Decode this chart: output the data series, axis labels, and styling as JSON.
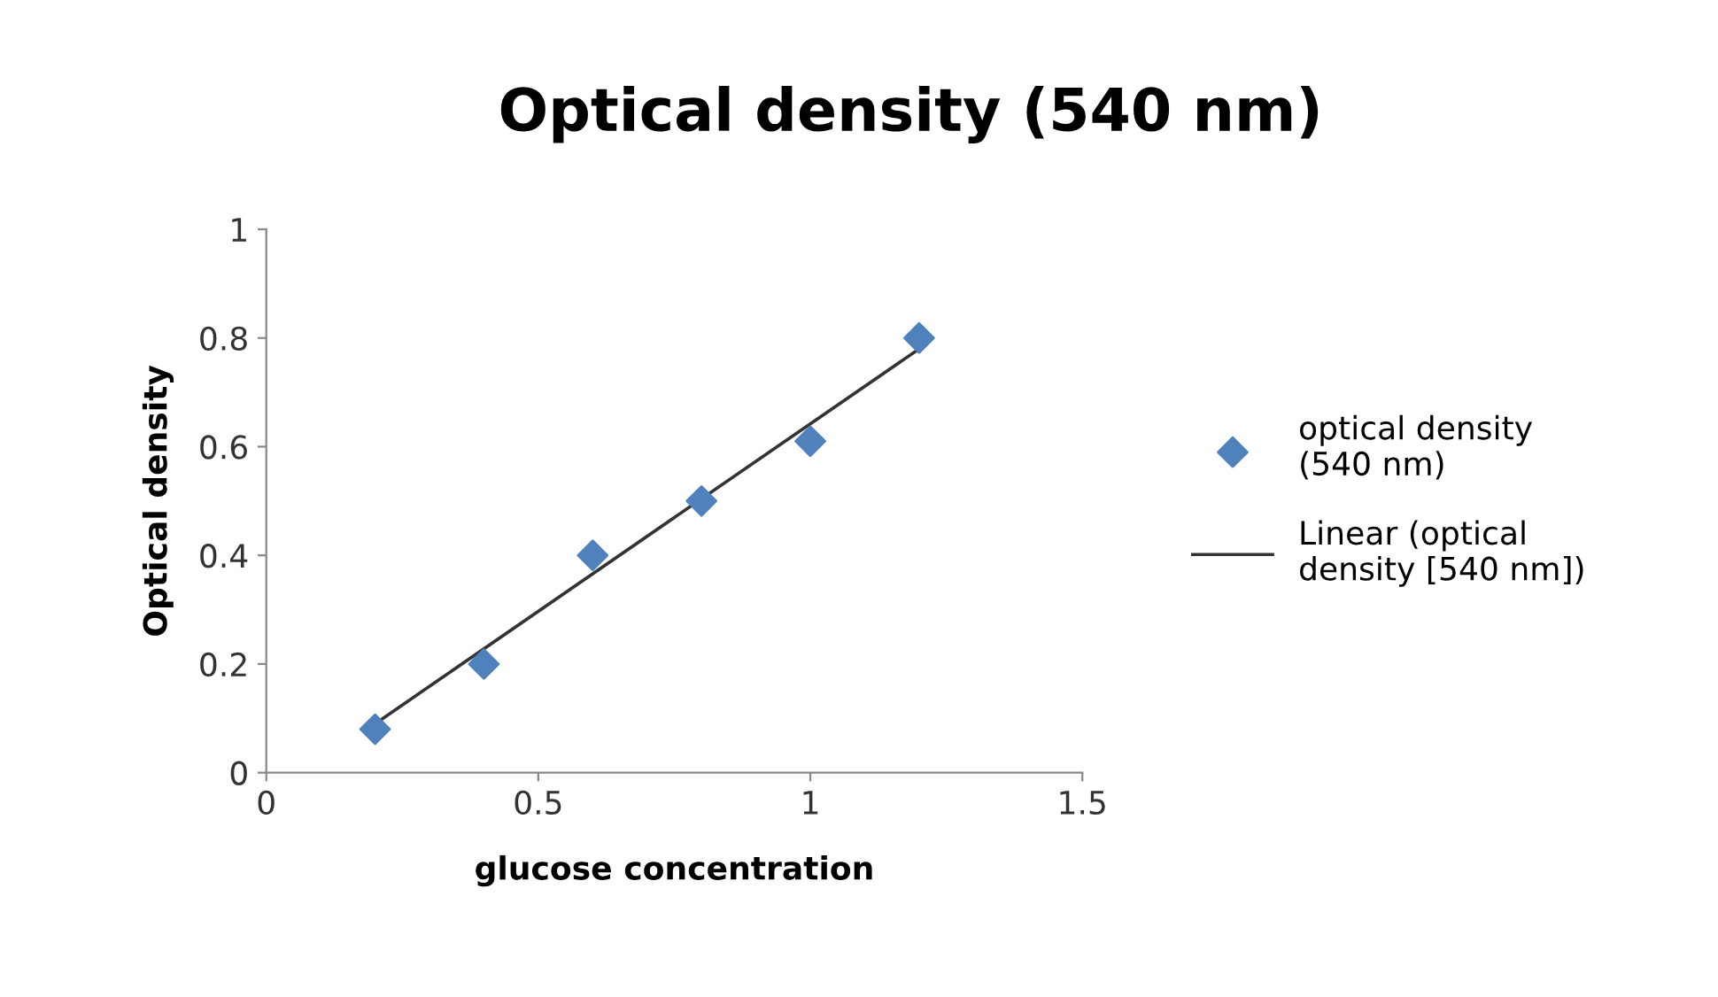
{
  "chart_data": {
    "type": "scatter",
    "title": "Optical density (540 nm)",
    "xlabel": "glucose concentration",
    "ylabel": "Optical density",
    "xlim": [
      0,
      1.5
    ],
    "xticks": [
      0,
      0.5,
      1,
      1.5
    ],
    "ylim": [
      0,
      1
    ],
    "yticks": [
      0,
      0.2,
      0.4,
      0.6,
      0.8,
      1
    ],
    "grid": false,
    "legend": "right",
    "series": [
      {
        "name": "optical density\n(540 nm)",
        "marker": "diamond",
        "color": "#4f81bd",
        "x": [
          0.2,
          0.4,
          0.6,
          0.8,
          1.0,
          1.2
        ],
        "values": [
          0.08,
          0.2,
          0.4,
          0.5,
          0.61,
          0.8
        ]
      },
      {
        "name": "Linear (optical\ndensity [540 nm])",
        "type": "line",
        "marker": "none",
        "line_style": "solid",
        "color": "#333333",
        "x": [
          0.2,
          1.2
        ],
        "values": [
          0.09,
          0.78
        ]
      }
    ]
  }
}
